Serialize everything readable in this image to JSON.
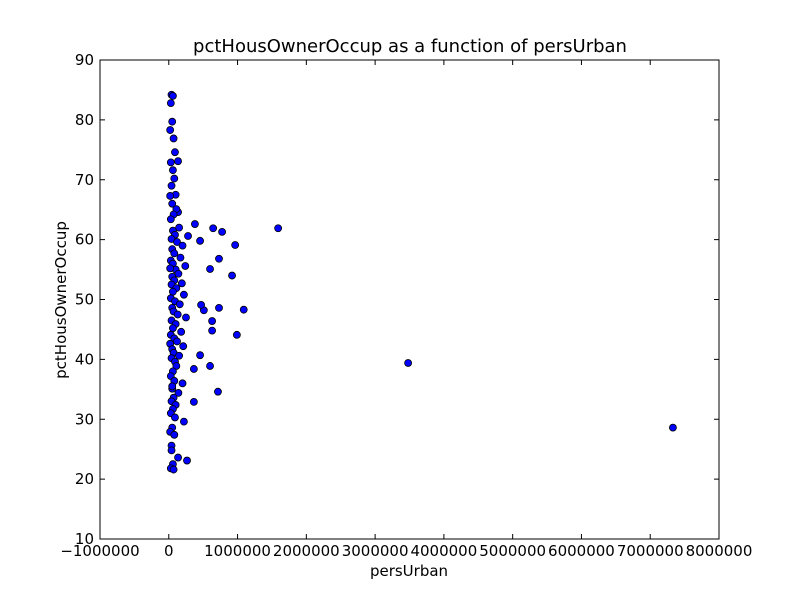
{
  "chart_data": {
    "type": "scatter",
    "title": "pctHousOwnerOccup as a function of persUrban",
    "x_label": "persUrban",
    "y_label": "pctHousOwnerOccup",
    "color": "#0000ff",
    "xlim": [
      -1000000,
      8000000
    ],
    "xticks": [
      {
        "value": -1000000,
        "label": "−1000000"
      },
      0,
      1000000,
      2000000,
      3000000,
      4000000,
      5000000,
      6000000,
      7000000,
      8000000
    ],
    "ylim": [
      10,
      90
    ],
    "yticks": [
      10,
      20,
      30,
      40,
      50,
      60,
      70,
      80,
      90
    ],
    "x": [
      1590000,
      3480000,
      7330000,
      1090000,
      990000,
      965000,
      920000,
      775000,
      715000,
      645000,
      730000,
      730000,
      630000,
      630000,
      600000,
      600000,
      510000,
      470000,
      455000,
      455000,
      380000,
      365000,
      365000,
      280000,
      265000,
      220000,
      135000,
      135000,
      135000,
      40000,
      60000,
      30000,
      50000,
      20000,
      70000,
      90000,
      30000,
      60000,
      80000,
      40000,
      100000,
      20000,
      50000,
      110000,
      70000,
      30000,
      150000,
      60000,
      90000,
      40000,
      120000,
      200000,
      50000,
      80000,
      170000,
      30000,
      60000,
      240000,
      100000,
      20000,
      140000,
      50000,
      80000,
      190000,
      40000,
      110000,
      60000,
      220000,
      30000,
      90000,
      160000,
      50000,
      70000,
      130000,
      250000,
      40000,
      100000,
      60000,
      180000,
      30000,
      80000,
      120000,
      20000,
      210000,
      50000,
      70000,
      150000,
      40000,
      90000,
      110000,
      60000,
      30000,
      80000,
      200000,
      50000,
      140000,
      70000,
      40000,
      100000,
      60000,
      30000,
      90000,
      50000,
      20000,
      80000,
      40000,
      60000,
      30000,
      70000,
      50000,
      40000
    ],
    "y": [
      61.9,
      39.4,
      28.6,
      48.3,
      44.1,
      59.1,
      54.0,
      61.3,
      34.6,
      61.9,
      56.8,
      48.6,
      46.4,
      44.8,
      38.9,
      55.1,
      48.2,
      49.1,
      59.8,
      40.7,
      62.6,
      32.9,
      38.4,
      60.6,
      23.1,
      29.6,
      23.6,
      64.6,
      73.1,
      84.2,
      84.0,
      82.8,
      79.7,
      78.3,
      76.9,
      74.6,
      72.9,
      71.6,
      70.2,
      69.0,
      67.5,
      67.3,
      66.0,
      65.1,
      64.2,
      63.4,
      62.0,
      61.5,
      60.8,
      60.1,
      59.6,
      59.0,
      58.4,
      57.7,
      57.0,
      56.5,
      56.0,
      55.6,
      55.0,
      55.2,
      54.3,
      53.8,
      53.2,
      52.7,
      52.5,
      51.9,
      51.3,
      50.8,
      50.2,
      49.7,
      49.2,
      48.6,
      48.0,
      47.5,
      47.0,
      46.5,
      45.9,
      45.2,
      44.6,
      44.1,
      43.5,
      43.0,
      42.6,
      42.2,
      41.7,
      41.1,
      40.6,
      40.2,
      39.6,
      38.9,
      38.0,
      37.2,
      36.4,
      36.0,
      35.1,
      34.4,
      33.6,
      33.0,
      32.4,
      31.7,
      31.0,
      30.3,
      28.6,
      27.9,
      27.4,
      25.6,
      22.5,
      21.8,
      21.6,
      35.5,
      24.8
    ]
  }
}
